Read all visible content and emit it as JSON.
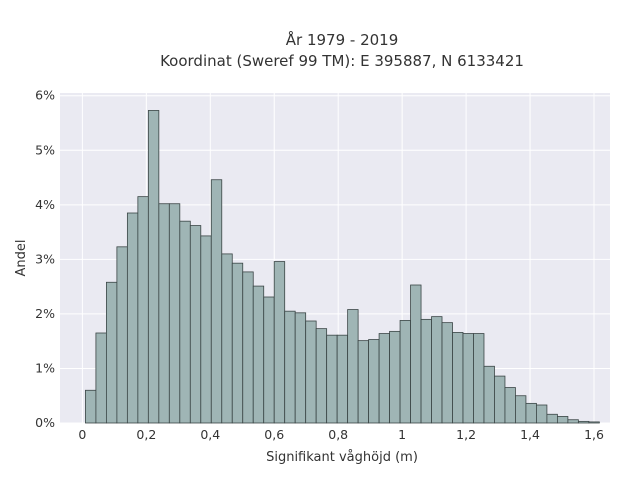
{
  "chart_data": {
    "type": "bar",
    "title": "År 1979 - 2019",
    "subtitle": "Koordinat (Sweref 99 TM): E 395887, N 6133421",
    "xlabel": "Signifikant våghöjd (m)",
    "ylabel": "Andel",
    "xlim": [
      -0.07,
      1.65
    ],
    "ylim": [
      0,
      6.05
    ],
    "grid": true,
    "x_ticks": [
      {
        "value": 0,
        "label": "0"
      },
      {
        "value": 0.2,
        "label": "0,2"
      },
      {
        "value": 0.4,
        "label": "0,4"
      },
      {
        "value": 0.6,
        "label": "0,6"
      },
      {
        "value": 0.8,
        "label": "0,8"
      },
      {
        "value": 1.0,
        "label": "1"
      },
      {
        "value": 1.2,
        "label": "1,2"
      },
      {
        "value": 1.4,
        "label": "1,4"
      },
      {
        "value": 1.6,
        "label": "1,6"
      }
    ],
    "y_ticks": [
      {
        "value": 0,
        "label": "0%"
      },
      {
        "value": 1,
        "label": "1%"
      },
      {
        "value": 2,
        "label": "2%"
      },
      {
        "value": 3,
        "label": "3%"
      },
      {
        "value": 4,
        "label": "4%"
      },
      {
        "value": 5,
        "label": "5%"
      },
      {
        "value": 6,
        "label": "6%"
      }
    ],
    "bin_width": 0.0328,
    "bin_start": 0.0095,
    "values": [
      0.6,
      1.65,
      2.58,
      3.23,
      3.85,
      4.15,
      5.73,
      4.02,
      4.02,
      3.7,
      3.62,
      3.43,
      4.46,
      3.1,
      2.93,
      2.77,
      2.51,
      2.31,
      2.96,
      2.05,
      2.02,
      1.87,
      1.73,
      1.61,
      1.61,
      2.08,
      1.51,
      1.53,
      1.64,
      1.68,
      1.88,
      2.53,
      1.9,
      1.95,
      1.84,
      1.66,
      1.64,
      1.64,
      1.04,
      0.86,
      0.65,
      0.5,
      0.36,
      0.33,
      0.16,
      0.12,
      0.06,
      0.03,
      0.02
    ],
    "colors": {
      "bar_fill": "#9fb5b5",
      "bar_stroke": "#3a4545",
      "plot_bg": "#eaeaf2",
      "grid": "#ffffff"
    }
  }
}
